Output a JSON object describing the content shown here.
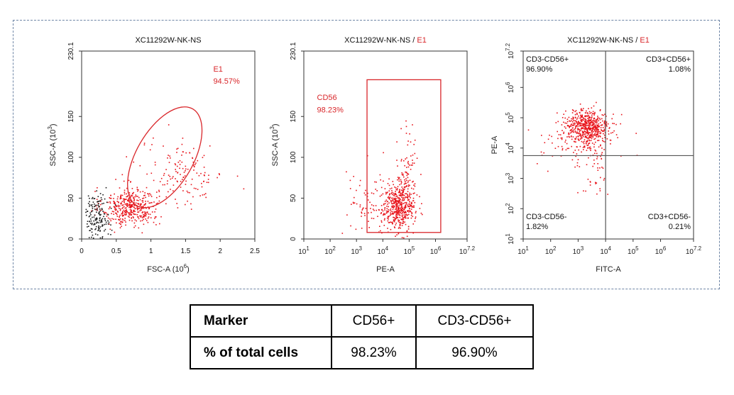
{
  "colors": {
    "gate": "#d9262a",
    "event": "#e8141b",
    "frame": "#6f86a6",
    "ungated": "#1a1a1a",
    "axis": "#333333"
  },
  "chart_data": [
    {
      "type": "scatter",
      "title": "XC11292W-NK-NS",
      "title_gate": "",
      "xlabel": "FSC-A (10^6)",
      "ylabel": "SSC-A (10^3)",
      "xscale": "linear",
      "yscale": "linear",
      "xlim": [
        0,
        2.5
      ],
      "ylim": [
        0,
        230.1
      ],
      "xticks": [
        0,
        0.5,
        1,
        1.5,
        2,
        2.5
      ],
      "xticklabels": [
        "0",
        "0.5",
        "1",
        "1.5",
        "2",
        "2.5"
      ],
      "yticks": [
        0,
        50,
        100,
        150,
        230.1
      ],
      "yticklabels": [
        "0",
        "50",
        "100",
        "150",
        "230.1"
      ],
      "gate": {
        "shape": "ellipse",
        "name": "E1",
        "percent": "94.57%",
        "center": [
          1.2,
          100
        ],
        "radii": [
          1.05,
          95
        ],
        "rotation_deg": 30
      },
      "populations": [
        {
          "name": "lymphocytes",
          "color": "red",
          "center": [
            0.7,
            40
          ],
          "spread": [
            0.2,
            12
          ],
          "n": 420
        },
        {
          "name": "granular",
          "color": "red",
          "center": [
            1.45,
            80
          ],
          "spread": [
            0.3,
            20
          ],
          "n": 140
        },
        {
          "name": "debris",
          "color": "black",
          "center": [
            0.22,
            28
          ],
          "spread": [
            0.09,
            14
          ],
          "n": 160
        }
      ]
    },
    {
      "type": "scatter",
      "title": "XC11292W-NK-NS",
      "title_gate": "E1",
      "xlabel": "PE-A",
      "ylabel": "SSC-A (10^3)",
      "xscale": "log",
      "yscale": "linear",
      "xlim": [
        1,
        7.2
      ],
      "ylim": [
        0,
        230.1
      ],
      "xticks": [
        1,
        2,
        3,
        4,
        5,
        6,
        7.2
      ],
      "xticklabels": [
        "1",
        "2",
        "3",
        "4",
        "5",
        "6",
        "7.2"
      ],
      "yticks": [
        0,
        50,
        100,
        150,
        230.1
      ],
      "yticklabels": [
        "0",
        "50",
        "100",
        "150",
        "230.1"
      ],
      "gate": {
        "shape": "rectangle",
        "name": "CD56",
        "percent": "98.23%",
        "x": [
          3.4,
          6.2
        ],
        "y": [
          8,
          195
        ]
      },
      "populations": [
        {
          "name": "NK",
          "color": "red",
          "center": [
            4.6,
            40
          ],
          "spread": [
            0.3,
            14
          ],
          "n": 450
        },
        {
          "name": "tail",
          "color": "red",
          "center": [
            4.9,
            80
          ],
          "spread": [
            0.2,
            25
          ],
          "n": 100
        },
        {
          "name": "scatter",
          "color": "red",
          "center": [
            3.6,
            40
          ],
          "spread": [
            0.6,
            20
          ],
          "n": 90
        }
      ]
    },
    {
      "type": "scatter",
      "title": "XC11292W-NK-NS",
      "title_gate": "E1",
      "xlabel": "FITC-A",
      "ylabel": "PE-A",
      "xscale": "log",
      "yscale": "log",
      "xlim": [
        1,
        7.2
      ],
      "ylim": [
        1,
        7.2
      ],
      "xticks": [
        1,
        2,
        3,
        4,
        5,
        6,
        7.2
      ],
      "xticklabels": [
        "1",
        "2",
        "3",
        "4",
        "5",
        "6",
        "7.2"
      ],
      "yticks": [
        1,
        2,
        3,
        4,
        5,
        6,
        7.2
      ],
      "yticklabels": [
        "1",
        "2",
        "3",
        "4",
        "5",
        "6",
        "7.2"
      ],
      "quadrant": {
        "x": 4.0,
        "y": 3.75
      },
      "quadrants": [
        {
          "name": "CD3-CD56+",
          "percent": "96.90%",
          "position": "top-left"
        },
        {
          "name": "CD3+CD56+",
          "percent": "1.08%",
          "position": "top-right"
        },
        {
          "name": "CD3-CD56-",
          "percent": "1.82%",
          "position": "bottom-left"
        },
        {
          "name": "CD3+CD56-",
          "percent": "0.21%",
          "position": "bottom-right"
        }
      ],
      "populations": [
        {
          "name": "CD3-CD56+",
          "color": "red",
          "center": [
            3.3,
            4.7
          ],
          "spread": [
            0.4,
            0.3
          ],
          "n": 520
        },
        {
          "name": "spread",
          "color": "red",
          "center": [
            3.0,
            4.3
          ],
          "spread": [
            0.8,
            0.45
          ],
          "n": 120
        },
        {
          "name": "low",
          "color": "red",
          "center": [
            3.6,
            3.2
          ],
          "spread": [
            0.3,
            0.5
          ],
          "n": 40
        }
      ]
    }
  ],
  "table": {
    "header": "Marker",
    "row_label": "% of total cells",
    "col1": "CD56+",
    "col2": "CD3-CD56+",
    "val1": "98.23%",
    "val2": "96.90%"
  }
}
